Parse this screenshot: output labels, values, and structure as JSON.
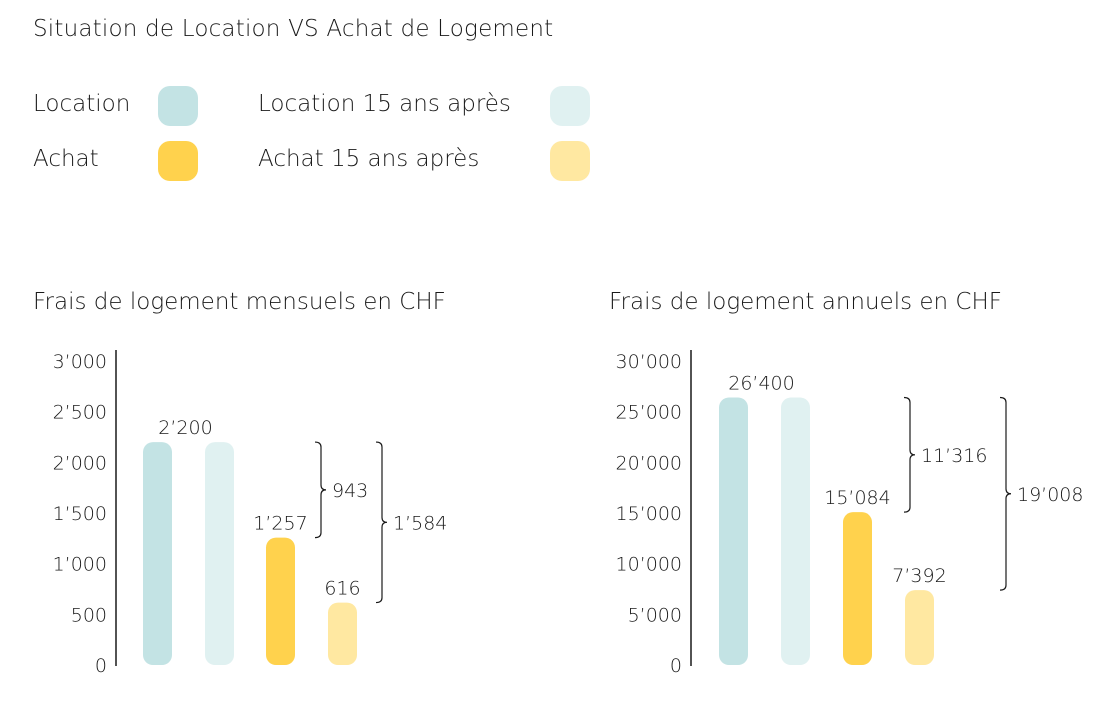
{
  "title": "Situation de Location VS Achat de Logement",
  "legend": [
    {
      "label": "Location",
      "color": "#c3e3e4"
    },
    {
      "label": "Location 15 ans après",
      "color": "#e0f1f1"
    },
    {
      "label": "Achat",
      "color": "#ffd24d"
    },
    {
      "label": "Achat 15 ans après",
      "color": "#ffe8a1"
    }
  ],
  "chart_data": [
    {
      "type": "bar",
      "title": "Frais de logement mensuels en CHF",
      "categories": [
        "Location",
        "Location 15 ans après",
        "Achat",
        "Achat 15 ans après"
      ],
      "values": [
        2200,
        2200,
        1257,
        616
      ],
      "value_labels": [
        "2’200",
        "",
        "1’257",
        "616"
      ],
      "ylim": [
        0,
        3000
      ],
      "yticks": [
        0,
        500,
        1000,
        1500,
        2000,
        2500,
        3000
      ],
      "ytick_labels": [
        "0",
        "500",
        "1’000",
        "1’500",
        "2’000",
        "2’500",
        "3’000"
      ],
      "annotations": [
        {
          "label": "943",
          "from": 2200,
          "to": 1257
        },
        {
          "label": "1’584",
          "from": 2200,
          "to": 616
        }
      ]
    },
    {
      "type": "bar",
      "title": "Frais de logement annuels en CHF",
      "categories": [
        "Location",
        "Location 15 ans après",
        "Achat",
        "Achat 15 ans après"
      ],
      "values": [
        26400,
        26400,
        15084,
        7392
      ],
      "value_labels": [
        "26’400",
        "",
        "15’084",
        "7’392"
      ],
      "ylim": [
        0,
        30000
      ],
      "yticks": [
        0,
        5000,
        10000,
        15000,
        20000,
        25000,
        30000
      ],
      "ytick_labels": [
        "0",
        "5’000",
        "10’000",
        "15’000",
        "20’000",
        "25’000",
        "30’000"
      ],
      "annotations": [
        {
          "label": "11’316",
          "from": 26400,
          "to": 15084
        },
        {
          "label": "19’008",
          "from": 26400,
          "to": 7392
        }
      ]
    }
  ]
}
